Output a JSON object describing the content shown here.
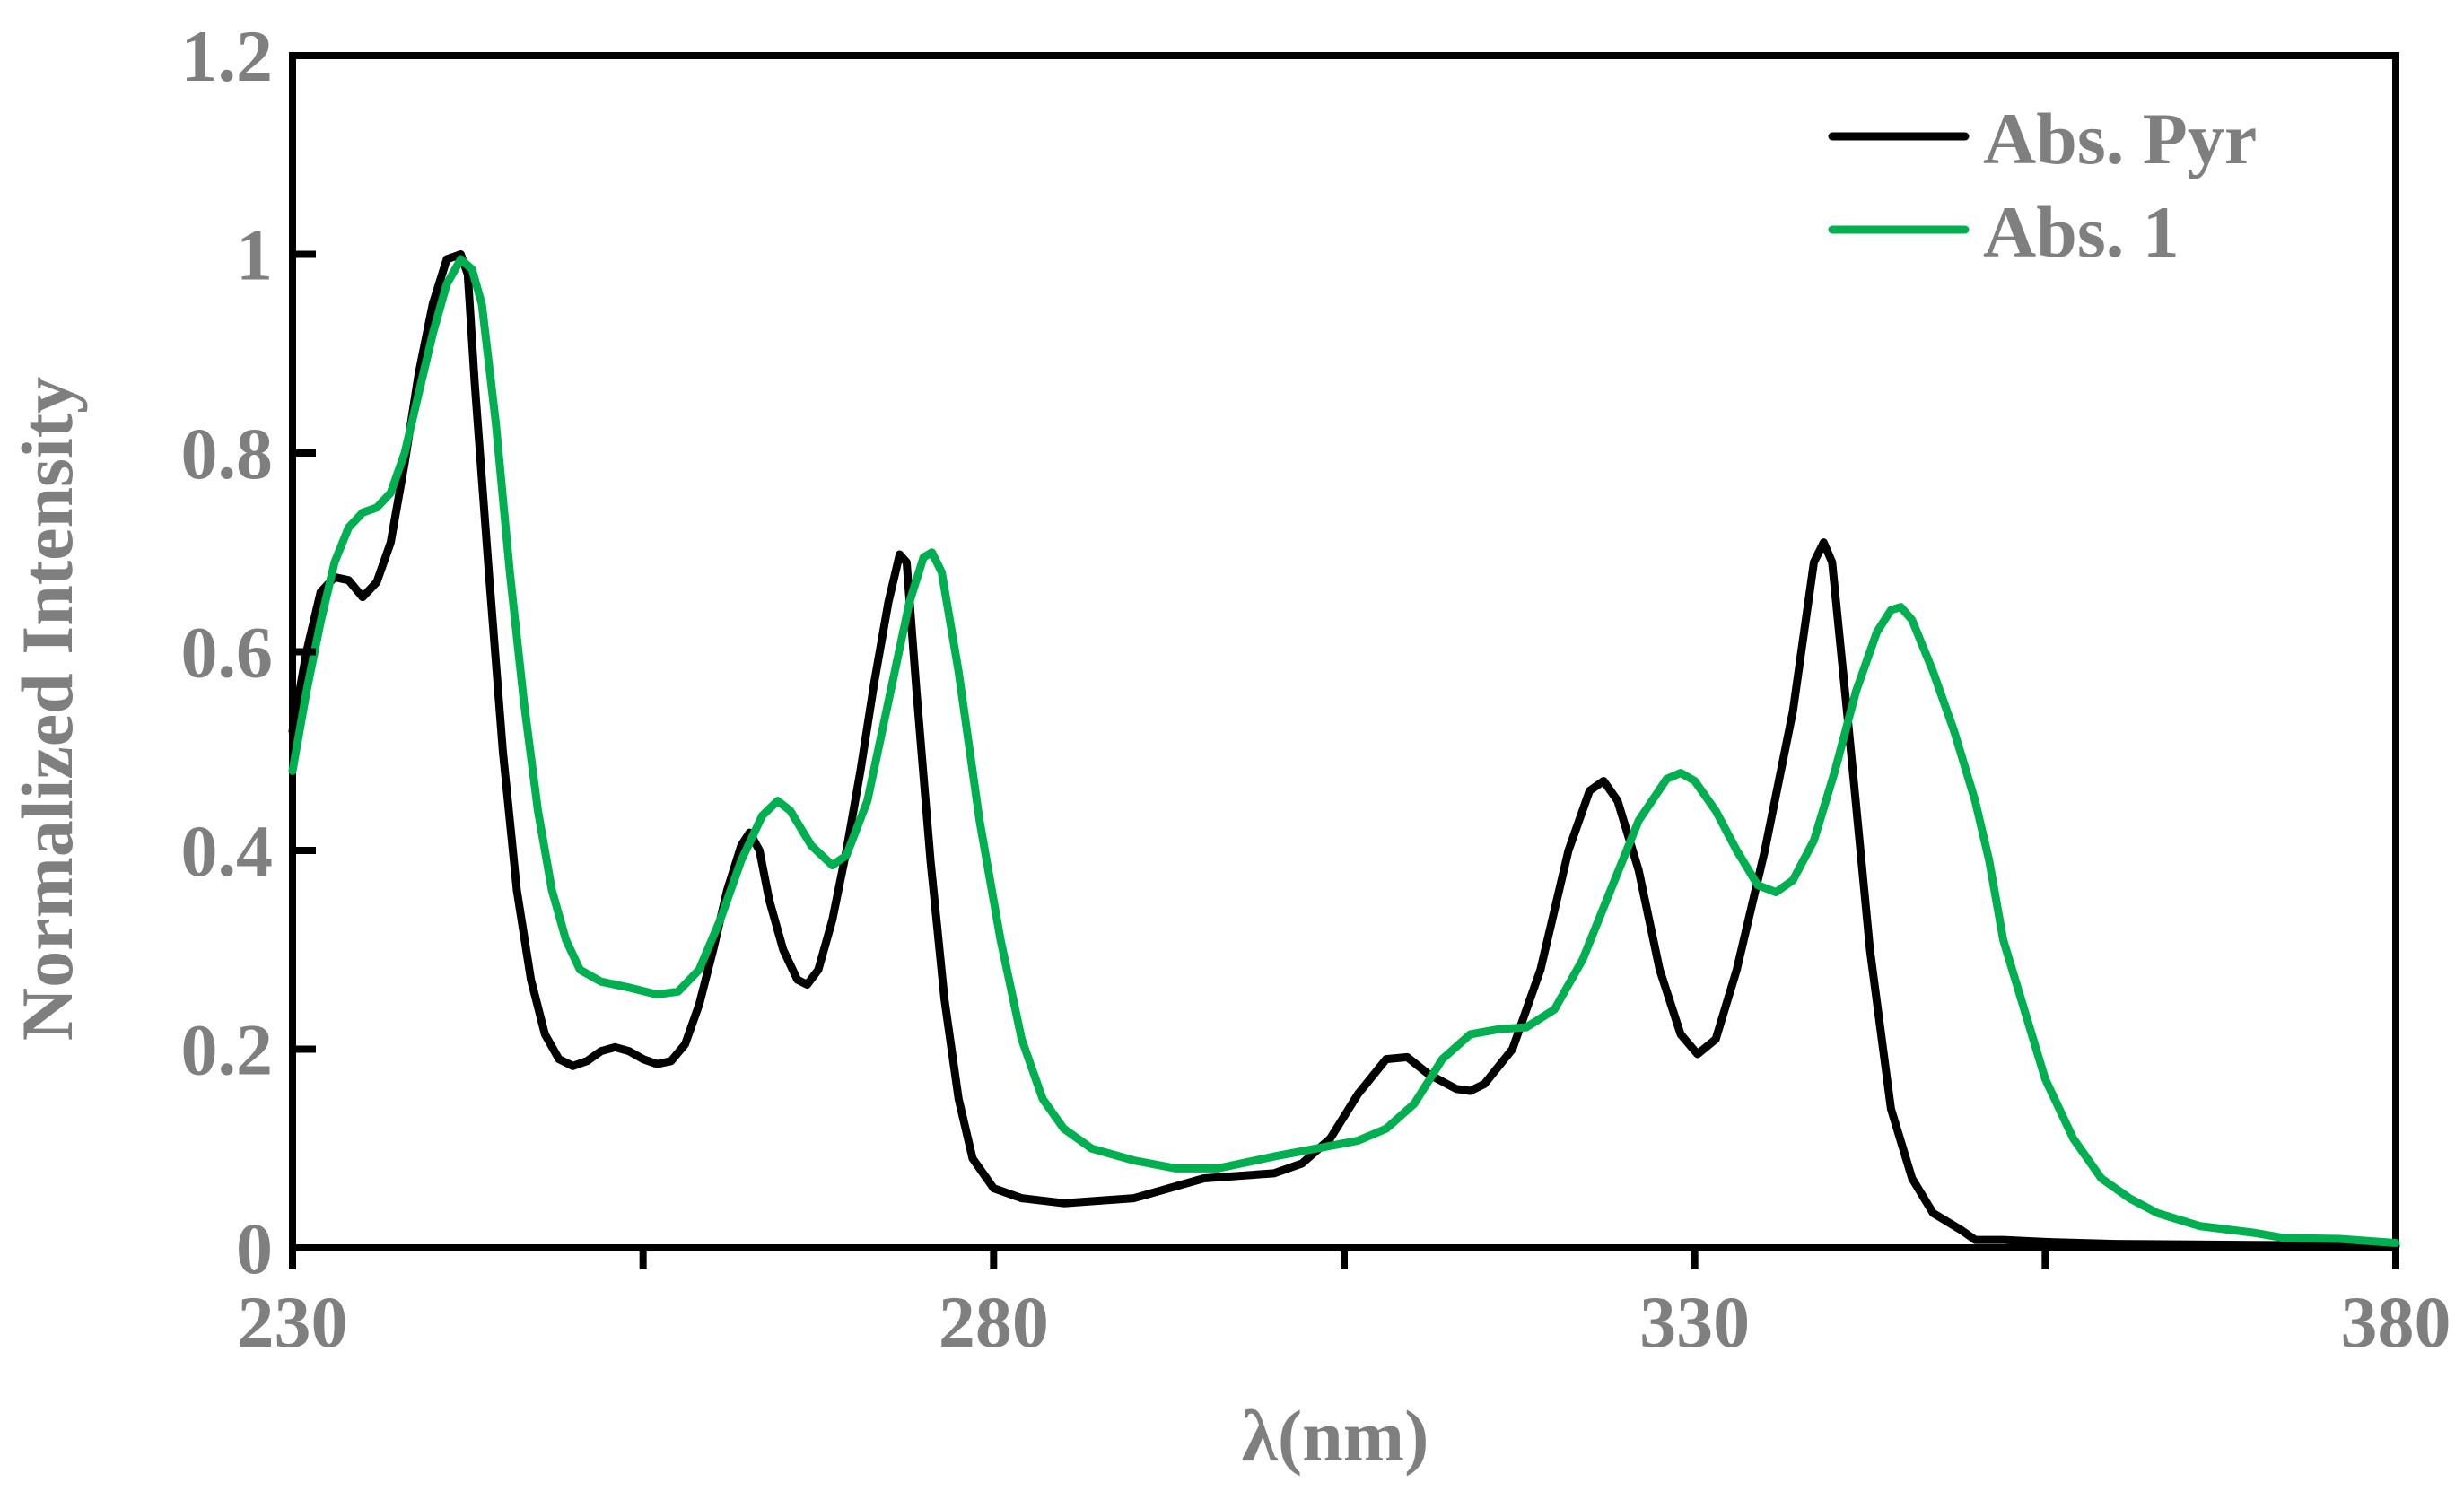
{
  "chart_data": {
    "type": "line",
    "title": "",
    "xlabel": "λ(nm)",
    "ylabel": "Normalized Intensity",
    "xlim": [
      230,
      380
    ],
    "ylim": [
      0,
      1.2
    ],
    "x_ticks": [
      230,
      255,
      280,
      305,
      330,
      355,
      380
    ],
    "x_tick_labels": [
      "230",
      "",
      "280",
      "",
      "330",
      "",
      "380"
    ],
    "y_ticks": [
      0,
      0.2,
      0.4,
      0.6,
      0.8,
      1,
      1.2
    ],
    "y_tick_labels": [
      "0",
      "0.2",
      "0.4",
      "0.6",
      "0.8",
      "1",
      "1.2"
    ],
    "grid": false,
    "legend_position": "top-right",
    "series": [
      {
        "name": "Abs. Pyr",
        "color": "#000000",
        "points": [
          [
            230,
            0.52
          ],
          [
            231,
            0.6
          ],
          [
            232,
            0.66
          ],
          [
            233,
            0.675
          ],
          [
            234,
            0.672
          ],
          [
            235,
            0.655
          ],
          [
            236,
            0.67
          ],
          [
            237,
            0.71
          ],
          [
            238,
            0.79
          ],
          [
            239,
            0.88
          ],
          [
            240,
            0.95
          ],
          [
            241,
            0.995
          ],
          [
            242,
            1.0
          ],
          [
            242.5,
            0.98
          ],
          [
            243,
            0.87
          ],
          [
            244,
            0.68
          ],
          [
            245,
            0.5
          ],
          [
            246,
            0.36
          ],
          [
            247,
            0.27
          ],
          [
            248,
            0.215
          ],
          [
            249,
            0.19
          ],
          [
            250,
            0.183
          ],
          [
            251,
            0.188
          ],
          [
            252,
            0.198
          ],
          [
            253,
            0.202
          ],
          [
            254,
            0.198
          ],
          [
            255,
            0.19
          ],
          [
            256,
            0.185
          ],
          [
            257,
            0.188
          ],
          [
            258,
            0.205
          ],
          [
            259,
            0.245
          ],
          [
            260,
            0.3
          ],
          [
            261,
            0.36
          ],
          [
            262,
            0.405
          ],
          [
            262.6,
            0.418
          ],
          [
            263.3,
            0.4
          ],
          [
            264,
            0.35
          ],
          [
            265,
            0.3
          ],
          [
            266,
            0.27
          ],
          [
            266.7,
            0.265
          ],
          [
            267.5,
            0.28
          ],
          [
            268.5,
            0.33
          ],
          [
            269.5,
            0.4
          ],
          [
            270.5,
            0.48
          ],
          [
            271.5,
            0.57
          ],
          [
            272.5,
            0.65
          ],
          [
            273.3,
            0.698
          ],
          [
            273.8,
            0.69
          ],
          [
            274.5,
            0.56
          ],
          [
            275.5,
            0.39
          ],
          [
            276.5,
            0.25
          ],
          [
            277.5,
            0.15
          ],
          [
            278.5,
            0.09
          ],
          [
            280,
            0.06
          ],
          [
            282,
            0.05
          ],
          [
            285,
            0.045
          ],
          [
            290,
            0.05
          ],
          [
            295,
            0.07
          ],
          [
            300,
            0.075
          ],
          [
            302,
            0.085
          ],
          [
            304,
            0.11
          ],
          [
            306,
            0.155
          ],
          [
            308,
            0.19
          ],
          [
            309.5,
            0.192
          ],
          [
            311,
            0.175
          ],
          [
            313,
            0.16
          ],
          [
            314,
            0.158
          ],
          [
            315,
            0.165
          ],
          [
            317,
            0.2
          ],
          [
            319,
            0.28
          ],
          [
            321,
            0.4
          ],
          [
            322.5,
            0.46
          ],
          [
            323.5,
            0.47
          ],
          [
            324.5,
            0.45
          ],
          [
            326,
            0.38
          ],
          [
            327.5,
            0.28
          ],
          [
            329,
            0.215
          ],
          [
            330.2,
            0.195
          ],
          [
            331.5,
            0.21
          ],
          [
            333,
            0.28
          ],
          [
            335,
            0.4
          ],
          [
            337,
            0.54
          ],
          [
            338.5,
            0.69
          ],
          [
            339.2,
            0.71
          ],
          [
            339.8,
            0.69
          ],
          [
            341,
            0.52
          ],
          [
            342.5,
            0.3
          ],
          [
            344,
            0.14
          ],
          [
            345.5,
            0.07
          ],
          [
            347,
            0.035
          ],
          [
            349,
            0.018
          ],
          [
            350,
            0.008
          ],
          [
            352,
            0.008
          ],
          [
            355,
            0.006
          ],
          [
            360,
            0.004
          ],
          [
            370,
            0.003
          ],
          [
            380,
            0.002
          ]
        ]
      },
      {
        "name": "Abs. 1",
        "color": "#00b050",
        "points": [
          [
            230,
            0.48
          ],
          [
            231,
            0.56
          ],
          [
            232,
            0.63
          ],
          [
            233,
            0.69
          ],
          [
            234,
            0.725
          ],
          [
            235,
            0.74
          ],
          [
            236,
            0.745
          ],
          [
            237,
            0.76
          ],
          [
            238,
            0.8
          ],
          [
            239,
            0.86
          ],
          [
            240,
            0.92
          ],
          [
            241,
            0.97
          ],
          [
            242,
            0.995
          ],
          [
            242.8,
            0.985
          ],
          [
            243.5,
            0.95
          ],
          [
            244.5,
            0.83
          ],
          [
            245.5,
            0.68
          ],
          [
            246.5,
            0.55
          ],
          [
            247.5,
            0.44
          ],
          [
            248.5,
            0.36
          ],
          [
            249.5,
            0.31
          ],
          [
            250.5,
            0.28
          ],
          [
            252,
            0.268
          ],
          [
            254,
            0.262
          ],
          [
            256,
            0.255
          ],
          [
            257.5,
            0.258
          ],
          [
            259,
            0.28
          ],
          [
            260.5,
            0.33
          ],
          [
            262,
            0.39
          ],
          [
            263.5,
            0.435
          ],
          [
            264.6,
            0.45
          ],
          [
            265.5,
            0.44
          ],
          [
            267,
            0.405
          ],
          [
            268.5,
            0.385
          ],
          [
            269.5,
            0.395
          ],
          [
            271,
            0.45
          ],
          [
            272.5,
            0.55
          ],
          [
            274,
            0.65
          ],
          [
            275,
            0.695
          ],
          [
            275.6,
            0.7
          ],
          [
            276.3,
            0.68
          ],
          [
            277.5,
            0.58
          ],
          [
            279,
            0.43
          ],
          [
            280.5,
            0.31
          ],
          [
            282,
            0.21
          ],
          [
            283.5,
            0.15
          ],
          [
            285,
            0.12
          ],
          [
            287,
            0.1
          ],
          [
            290,
            0.088
          ],
          [
            293,
            0.08
          ],
          [
            296,
            0.08
          ],
          [
            300,
            0.092
          ],
          [
            303,
            0.1
          ],
          [
            306,
            0.108
          ],
          [
            308,
            0.12
          ],
          [
            310,
            0.145
          ],
          [
            312,
            0.19
          ],
          [
            314,
            0.215
          ],
          [
            316,
            0.22
          ],
          [
            318,
            0.222
          ],
          [
            320,
            0.24
          ],
          [
            322,
            0.29
          ],
          [
            324,
            0.36
          ],
          [
            326,
            0.43
          ],
          [
            328,
            0.472
          ],
          [
            329,
            0.478
          ],
          [
            330,
            0.47
          ],
          [
            331.5,
            0.44
          ],
          [
            333,
            0.4
          ],
          [
            334.5,
            0.365
          ],
          [
            335.8,
            0.358
          ],
          [
            337,
            0.37
          ],
          [
            338.5,
            0.41
          ],
          [
            340,
            0.48
          ],
          [
            341.5,
            0.56
          ],
          [
            343,
            0.62
          ],
          [
            344,
            0.642
          ],
          [
            344.7,
            0.645
          ],
          [
            345.5,
            0.632
          ],
          [
            347,
            0.58
          ],
          [
            348.5,
            0.52
          ],
          [
            350,
            0.45
          ],
          [
            351,
            0.39
          ],
          [
            352,
            0.31
          ],
          [
            353.5,
            0.24
          ],
          [
            355,
            0.17
          ],
          [
            357,
            0.11
          ],
          [
            359,
            0.07
          ],
          [
            361,
            0.05
          ],
          [
            363,
            0.035
          ],
          [
            366,
            0.022
          ],
          [
            370,
            0.015
          ],
          [
            372,
            0.01
          ],
          [
            376,
            0.009
          ],
          [
            380,
            0.005
          ]
        ]
      }
    ]
  }
}
